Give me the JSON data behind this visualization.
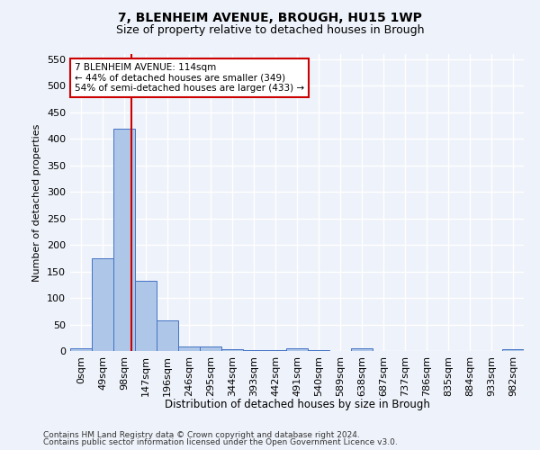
{
  "title": "7, BLENHEIM AVENUE, BROUGH, HU15 1WP",
  "subtitle": "Size of property relative to detached houses in Brough",
  "xlabel": "Distribution of detached houses by size in Brough",
  "ylabel": "Number of detached properties",
  "bar_labels": [
    "0sqm",
    "49sqm",
    "98sqm",
    "147sqm",
    "196sqm",
    "246sqm",
    "295sqm",
    "344sqm",
    "393sqm",
    "442sqm",
    "491sqm",
    "540sqm",
    "589sqm",
    "638sqm",
    "687sqm",
    "737sqm",
    "786sqm",
    "835sqm",
    "884sqm",
    "933sqm",
    "982sqm"
  ],
  "bar_values": [
    5,
    175,
    420,
    132,
    58,
    8,
    8,
    4,
    2,
    2,
    5,
    2,
    0,
    5,
    0,
    0,
    0,
    0,
    0,
    0,
    3
  ],
  "bar_color": "#aec6e8",
  "bar_edge_color": "#4472c4",
  "property_size_sqm": 114,
  "property_line_label": "7 BLENHEIM AVENUE: 114sqm",
  "annotation_line1": "← 44% of detached houses are smaller (349)",
  "annotation_line2": "54% of semi-detached houses are larger (433) →",
  "vline_color": "#cc0000",
  "annotation_box_color": "#cc0000",
  "ylim": [
    0,
    560
  ],
  "yticks": [
    0,
    50,
    100,
    150,
    200,
    250,
    300,
    350,
    400,
    450,
    500,
    550
  ],
  "footnote1": "Contains HM Land Registry data © Crown copyright and database right 2024.",
  "footnote2": "Contains public sector information licensed under the Open Government Licence v3.0.",
  "bg_color": "#eef2fa",
  "plot_bg_color": "#eef2fa"
}
